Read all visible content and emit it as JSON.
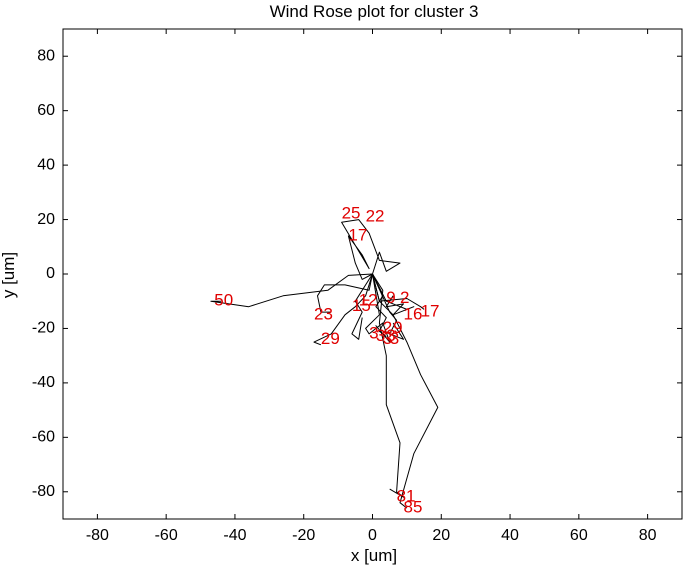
{
  "chart_data": {
    "type": "line",
    "title": "Wind Rose plot for cluster 3",
    "xlabel": "x [um]",
    "ylabel": "y [um]",
    "xlim": [
      -90,
      90
    ],
    "ylim": [
      -90,
      90
    ],
    "xticks": [
      -80,
      -60,
      -40,
      -20,
      0,
      20,
      40,
      60,
      80
    ],
    "yticks": [
      -80,
      -60,
      -40,
      -20,
      0,
      20,
      40,
      60,
      80
    ],
    "grid": false,
    "line_color": "#000000",
    "label_color": "#e00000",
    "series": [
      {
        "points": [
          [
            0,
            0
          ],
          [
            -7,
            -0.5
          ],
          [
            -13,
            -6
          ],
          [
            -26,
            -8
          ],
          [
            -36,
            -12
          ],
          [
            -47,
            -10
          ],
          [
            -44,
            -10
          ]
        ]
      },
      {
        "points": [
          [
            0,
            0
          ],
          [
            -1,
            -6
          ],
          [
            -8,
            -4
          ],
          [
            -14,
            -4
          ],
          [
            -16,
            -8
          ],
          [
            -15,
            -14
          ],
          [
            -12,
            -14
          ]
        ]
      },
      {
        "points": [
          [
            0,
            0
          ],
          [
            -2,
            -8
          ],
          [
            -5,
            -12
          ],
          [
            -8,
            -15
          ],
          [
            -12,
            -22
          ],
          [
            -17,
            -25
          ],
          [
            -15,
            -26
          ]
        ]
      },
      {
        "points": [
          [
            0,
            0
          ],
          [
            -3,
            -2
          ],
          [
            -5,
            4
          ],
          [
            -7,
            14
          ],
          [
            -3,
            7
          ],
          [
            -1,
            2
          ],
          [
            -9,
            19
          ],
          [
            -4,
            20
          ],
          [
            -1,
            15
          ],
          [
            2,
            5
          ],
          [
            8,
            4
          ],
          [
            4,
            1
          ],
          [
            2,
            8
          ],
          [
            0,
            0
          ]
        ]
      },
      {
        "points": [
          [
            0,
            0
          ],
          [
            -5,
            -10
          ],
          [
            -3,
            -14
          ],
          [
            -6,
            -22
          ],
          [
            -4,
            -24
          ],
          [
            -3,
            -16
          ]
        ]
      },
      {
        "points": [
          [
            0,
            0
          ],
          [
            3,
            -8
          ],
          [
            1,
            -12
          ],
          [
            4,
            -16
          ],
          [
            2,
            -21
          ],
          [
            4,
            -23
          ]
        ]
      },
      {
        "points": [
          [
            0,
            0
          ],
          [
            5,
            -14
          ],
          [
            7,
            -17
          ],
          [
            5,
            -22
          ],
          [
            9,
            -24
          ],
          [
            6,
            -18
          ]
        ]
      },
      {
        "points": [
          [
            0,
            0
          ],
          [
            2,
            -15
          ],
          [
            -2,
            -20
          ],
          [
            -1,
            -22
          ],
          [
            3,
            -18
          ],
          [
            5,
            -25
          ],
          [
            1,
            -19
          ],
          [
            3,
            -22
          ]
        ]
      },
      {
        "points": [
          [
            0,
            0
          ],
          [
            4,
            -10
          ],
          [
            10,
            -13
          ],
          [
            12,
            -12
          ],
          [
            6,
            -15
          ],
          [
            9,
            -11
          ],
          [
            4,
            -12
          ],
          [
            6,
            -8
          ]
        ]
      },
      {
        "points": [
          [
            0,
            0
          ],
          [
            2,
            -10
          ],
          [
            10,
            -9
          ],
          [
            14,
            -12
          ],
          [
            15,
            -13
          ]
        ]
      },
      {
        "points": [
          [
            0,
            0
          ],
          [
            3,
            -6
          ],
          [
            2,
            -18
          ],
          [
            4,
            -30
          ],
          [
            4,
            -48
          ],
          [
            8,
            -62
          ],
          [
            7,
            -80
          ],
          [
            9,
            -82
          ],
          [
            5,
            -79
          ]
        ]
      },
      {
        "points": [
          [
            0,
            0
          ],
          [
            2,
            -10
          ],
          [
            6,
            -15
          ],
          [
            10,
            -25
          ],
          [
            14,
            -37
          ],
          [
            19,
            -49
          ],
          [
            12,
            -66
          ],
          [
            8,
            -84
          ],
          [
            10,
            -86
          ]
        ]
      }
    ],
    "data_labels": [
      {
        "text": "25",
        "x": -9,
        "y": 22
      },
      {
        "text": "22",
        "x": -2,
        "y": 21
      },
      {
        "text": "17",
        "x": -7,
        "y": 14
      },
      {
        "text": "50",
        "x": -46,
        "y": -10
      },
      {
        "text": "12",
        "x": -4,
        "y": -10
      },
      {
        "text": "15",
        "x": -6,
        "y": -12
      },
      {
        "text": "23",
        "x": -17,
        "y": -15
      },
      {
        "text": "29",
        "x": -15,
        "y": -24
      },
      {
        "text": "9",
        "x": 4,
        "y": -9
      },
      {
        "text": "2",
        "x": 8,
        "y": -9
      },
      {
        "text": "16",
        "x": 9,
        "y": -15
      },
      {
        "text": "17",
        "x": 14,
        "y": -14
      },
      {
        "text": "9",
        "x": 6,
        "y": -20
      },
      {
        "text": "2",
        "x": 3,
        "y": -20
      },
      {
        "text": "3",
        "x": -1,
        "y": -22
      },
      {
        "text": "3",
        "x": 3,
        "y": -24
      },
      {
        "text": "3",
        "x": 1,
        "y": -23
      },
      {
        "text": "3",
        "x": 4,
        "y": -23
      },
      {
        "text": "3",
        "x": 5,
        "y": -24
      },
      {
        "text": "81",
        "x": 7,
        "y": -82
      },
      {
        "text": "85",
        "x": 9,
        "y": -86
      }
    ]
  }
}
